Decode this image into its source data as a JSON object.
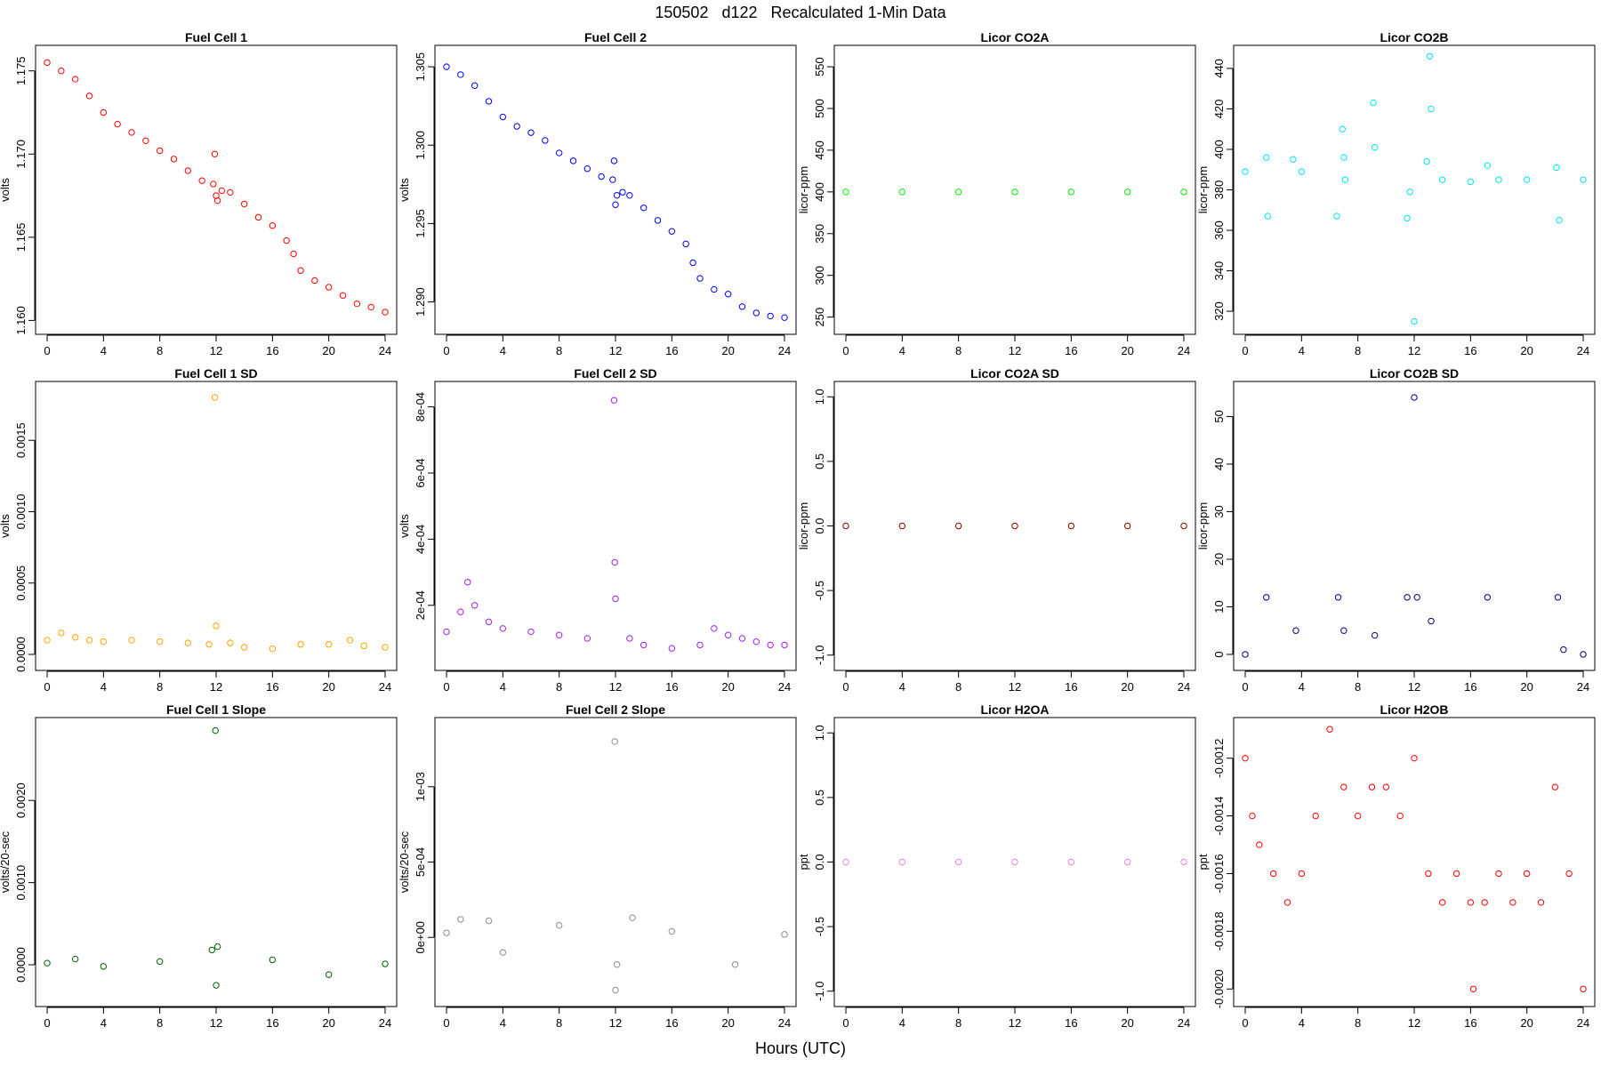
{
  "figure": {
    "title": "150502   d122   Recalculated 1-Min Data",
    "xlabel": "Hours (UTC)"
  },
  "chart_data": [
    {
      "type": "scatter",
      "title": "Fuel Cell 1",
      "ylabel": "volts",
      "color": "#ff0000",
      "xlim": [
        0,
        24
      ],
      "xticks": [
        0,
        4,
        8,
        12,
        16,
        20,
        24
      ],
      "ylim": [
        1.1597,
        1.176
      ],
      "yticks": [
        1.16,
        1.165,
        1.17,
        1.175
      ],
      "ytick_labels": [
        "1.160",
        "1.165",
        "1.170",
        "1.175"
      ],
      "x": [
        0,
        1,
        2,
        3,
        4,
        5,
        6,
        7,
        8,
        9,
        10,
        11,
        11.8,
        11.9,
        12.0,
        12.1,
        12.4,
        13,
        14,
        15,
        16,
        17,
        17.5,
        18,
        19,
        20,
        21,
        22,
        23,
        24
      ],
      "y": [
        1.1755,
        1.175,
        1.1745,
        1.1735,
        1.1725,
        1.1718,
        1.1713,
        1.1708,
        1.1702,
        1.1697,
        1.169,
        1.1684,
        1.1682,
        1.17,
        1.1675,
        1.1672,
        1.1678,
        1.1677,
        1.167,
        1.1662,
        1.1657,
        1.1648,
        1.164,
        1.163,
        1.1624,
        1.162,
        1.1615,
        1.161,
        1.1608,
        1.1605
      ]
    },
    {
      "type": "scatter",
      "title": "Fuel Cell 2",
      "ylabel": "volts",
      "color": "#0000ff",
      "xlim": [
        0,
        24
      ],
      "xticks": [
        0,
        4,
        8,
        12,
        16,
        20,
        24
      ],
      "ylim": [
        1.2885,
        1.3058
      ],
      "yticks": [
        1.29,
        1.295,
        1.3,
        1.305
      ],
      "ytick_labels": [
        "1.290",
        "1.295",
        "1.300",
        "1.305"
      ],
      "x": [
        0,
        1,
        2,
        3,
        4,
        5,
        6,
        7,
        8,
        9,
        10,
        11,
        11.8,
        11.9,
        12.0,
        12.1,
        12.5,
        13,
        14,
        15,
        16,
        17,
        17.5,
        18,
        19,
        20,
        21,
        22,
        23,
        24
      ],
      "y": [
        1.305,
        1.3045,
        1.3038,
        1.3028,
        1.3018,
        1.3012,
        1.3008,
        1.3003,
        1.2995,
        1.299,
        1.2985,
        1.298,
        1.2978,
        1.299,
        1.2962,
        1.2968,
        1.297,
        1.2968,
        1.296,
        1.2952,
        1.2945,
        1.2937,
        1.2925,
        1.2915,
        1.2908,
        1.2905,
        1.2897,
        1.2893,
        1.2891,
        1.289
      ]
    },
    {
      "type": "scatter",
      "title": "Licor CO2A",
      "ylabel": "licor-ppm",
      "color": "#00ee00",
      "xlim": [
        0,
        24
      ],
      "xticks": [
        0,
        4,
        8,
        12,
        16,
        20,
        24
      ],
      "ylim": [
        240,
        565
      ],
      "yticks": [
        250,
        300,
        350,
        400,
        450,
        500,
        550
      ],
      "ytick_labels": [
        "250",
        "300",
        "350",
        "400",
        "450",
        "500",
        "550"
      ],
      "x": [
        0,
        4,
        8,
        12,
        16,
        20,
        24
      ],
      "y": [
        400,
        400,
        400,
        400,
        400,
        400,
        400
      ]
    },
    {
      "type": "scatter",
      "title": "Licor CO2B",
      "ylabel": "licor-ppm",
      "color": "#00e5ee",
      "xlim": [
        0,
        24
      ],
      "xticks": [
        0,
        4,
        8,
        12,
        16,
        20,
        24
      ],
      "ylim": [
        313,
        447
      ],
      "yticks": [
        320,
        340,
        360,
        380,
        400,
        420,
        440
      ],
      "ytick_labels": [
        "320",
        "340",
        "360",
        "380",
        "400",
        "420",
        "440"
      ],
      "x": [
        0,
        1.5,
        1.6,
        3.4,
        4,
        6.5,
        6.9,
        7.0,
        7.1,
        9.1,
        9.2,
        11.5,
        11.7,
        12.0,
        12.9,
        13.1,
        13.2,
        14,
        16,
        17.2,
        18,
        20,
        22.1,
        22.3,
        24
      ],
      "y": [
        389,
        396,
        367,
        395,
        389,
        367,
        410,
        396,
        385,
        423,
        401,
        366,
        379,
        315,
        394,
        446,
        420,
        385,
        384,
        392,
        385,
        385,
        391,
        365,
        385
      ]
    },
    {
      "type": "scatter",
      "title": "Fuel Cell 1 SD",
      "ylabel": "volts",
      "color": "#ffa500",
      "xlim": [
        0,
        24
      ],
      "xticks": [
        0,
        4,
        8,
        12,
        16,
        20,
        24
      ],
      "ylim": [
        -5e-05,
        0.00185
      ],
      "yticks": [
        0.0,
        0.0005,
        0.001,
        0.0015
      ],
      "ytick_labels": [
        "0.0000",
        "0.0005",
        "0.0010",
        "0.0015"
      ],
      "x": [
        0,
        1,
        2,
        3,
        4,
        6,
        8,
        10,
        11.5,
        11.9,
        12.0,
        13,
        14,
        16,
        18,
        20,
        21.5,
        22.5,
        24
      ],
      "y": [
        0.0001,
        0.00015,
        0.00012,
        0.0001,
        9e-05,
        0.0001,
        9e-05,
        8e-05,
        7e-05,
        0.0018,
        0.0002,
        8e-05,
        5e-05,
        4e-05,
        7e-05,
        7e-05,
        0.0001,
        6e-05,
        5e-05
      ]
    },
    {
      "type": "scatter",
      "title": "Fuel Cell 2 SD",
      "ylabel": "volts",
      "color": "#a020f0",
      "xlim": [
        0,
        24
      ],
      "xticks": [
        0,
        4,
        8,
        12,
        16,
        20,
        24
      ],
      "ylim": [
        3e-05,
        0.00085
      ],
      "yticks": [
        0.0002,
        0.0004,
        0.0006,
        0.0008
      ],
      "ytick_labels": [
        "2e-04",
        "4e-04",
        "6e-04",
        "8e-04"
      ],
      "x": [
        0,
        1,
        1.5,
        2,
        3,
        4,
        6,
        8,
        10,
        11.9,
        11.95,
        12.0,
        13,
        14,
        16,
        18,
        19,
        20,
        21,
        22,
        23,
        24
      ],
      "y": [
        0.00012,
        0.00018,
        0.00027,
        0.0002,
        0.00015,
        0.00013,
        0.00012,
        0.00011,
        0.0001,
        0.00082,
        0.00033,
        0.00022,
        0.0001,
        8e-05,
        7e-05,
        8e-05,
        0.00013,
        0.00011,
        0.0001,
        9e-05,
        8e-05,
        8e-05
      ]
    },
    {
      "type": "scatter",
      "title": "Licor CO2A SD",
      "ylabel": "licor-ppm",
      "color": "#8b0000",
      "xlim": [
        0,
        24
      ],
      "xticks": [
        0,
        4,
        8,
        12,
        16,
        20,
        24
      ],
      "ylim": [
        -1.05,
        1.05
      ],
      "yticks": [
        -1.0,
        -0.5,
        0.0,
        0.5,
        1.0
      ],
      "ytick_labels": [
        "-1.0",
        "-0.5",
        "0.0",
        "0.5",
        "1.0"
      ],
      "x": [
        0,
        4,
        8,
        12,
        16,
        20,
        24
      ],
      "y": [
        0,
        0,
        0,
        0,
        0,
        0,
        0
      ]
    },
    {
      "type": "scatter",
      "title": "Licor CO2B SD",
      "ylabel": "licor-ppm",
      "color": "#000080",
      "xlim": [
        0,
        24
      ],
      "xticks": [
        0,
        4,
        8,
        12,
        16,
        20,
        24
      ],
      "ylim": [
        -1.5,
        55.5
      ],
      "yticks": [
        0,
        10,
        20,
        30,
        40,
        50
      ],
      "ytick_labels": [
        "0",
        "10",
        "20",
        "30",
        "40",
        "50"
      ],
      "x": [
        0,
        1.5,
        3.6,
        6.6,
        7.0,
        9.2,
        11.5,
        12.0,
        12.2,
        13.2,
        17.2,
        22.2,
        22.6,
        24
      ],
      "y": [
        0,
        12,
        5,
        12,
        5,
        4,
        12,
        54,
        12,
        7,
        12,
        12,
        1,
        0
      ]
    },
    {
      "type": "scatter",
      "title": "Fuel Cell 1 Slope",
      "ylabel": "volts/20-sec",
      "color": "#006400",
      "xlim": [
        0,
        24
      ],
      "xticks": [
        0,
        4,
        8,
        12,
        16,
        20,
        24
      ],
      "ylim": [
        -0.0004,
        0.0029
      ],
      "yticks": [
        0.0,
        0.001,
        0.002
      ],
      "ytick_labels": [
        "0.0000",
        "0.0010",
        "0.0020"
      ],
      "x": [
        0,
        2,
        4,
        8,
        11.7,
        11.95,
        12.0,
        12.1,
        16,
        20,
        24
      ],
      "y": [
        2e-05,
        7e-05,
        -2e-05,
        4e-05,
        0.00018,
        0.00285,
        -0.00025,
        0.00022,
        6e-05,
        -0.00012,
        1e-05
      ]
    },
    {
      "type": "scatter",
      "title": "Fuel Cell 2 Slope",
      "ylabel": "volts/20-sec",
      "color": "#8c8c8c",
      "xlim": [
        0,
        24
      ],
      "xticks": [
        0,
        4,
        8,
        12,
        16,
        20,
        24
      ],
      "ylim": [
        -0.0004,
        0.0014
      ],
      "yticks": [
        0,
        0.0005,
        0.001
      ],
      "ytick_labels": [
        "0e+00",
        "5e-04",
        "1e-03"
      ],
      "x": [
        0,
        1,
        3,
        4,
        8,
        11.95,
        12.0,
        12.1,
        13.2,
        16,
        20.5,
        24
      ],
      "y": [
        3e-05,
        0.00012,
        0.00011,
        -0.0001,
        8e-05,
        0.0013,
        -0.00035,
        -0.00018,
        0.00013,
        4e-05,
        -0.00018,
        2e-05
      ]
    },
    {
      "type": "scatter",
      "title": "Licor H2OA",
      "ylabel": "ppt",
      "color": "#ee82ee",
      "xlim": [
        0,
        24
      ],
      "xticks": [
        0,
        4,
        8,
        12,
        16,
        20,
        24
      ],
      "ylim": [
        -1.05,
        1.05
      ],
      "yticks": [
        -1.0,
        -0.5,
        0.0,
        0.5,
        1.0
      ],
      "ytick_labels": [
        "-1.0",
        "-0.5",
        "0.0",
        "0.5",
        "1.0"
      ],
      "x": [
        0,
        4,
        8,
        12,
        16,
        20,
        24
      ],
      "y": [
        0,
        0,
        0,
        0,
        0,
        0,
        0
      ]
    },
    {
      "type": "scatter",
      "title": "Licor H2OB",
      "ylabel": "ppt",
      "color": "#ff0000",
      "xlim": [
        0,
        24
      ],
      "xticks": [
        0,
        4,
        8,
        12,
        16,
        20,
        24
      ],
      "ylim": [
        -0.00203,
        -0.00109
      ],
      "yticks": [
        -0.002,
        -0.0018,
        -0.0016,
        -0.0014,
        -0.0012
      ],
      "ytick_labels": [
        "-0.0020",
        "-0.0018",
        "-0.0016",
        "-0.0014",
        "-0.0012"
      ],
      "x": [
        0,
        0.5,
        1,
        2,
        3,
        4,
        5,
        6,
        7,
        8,
        9,
        10,
        11,
        12,
        13,
        14,
        15,
        16,
        16.2,
        17,
        18,
        19,
        20,
        21,
        22,
        23,
        24
      ],
      "y": [
        -0.0012,
        -0.0014,
        -0.0015,
        -0.0016,
        -0.0017,
        -0.0016,
        -0.0014,
        -0.0011,
        -0.0013,
        -0.0014,
        -0.0013,
        -0.0013,
        -0.0014,
        -0.0012,
        -0.0016,
        -0.0017,
        -0.0016,
        -0.0017,
        -0.002,
        -0.0017,
        -0.0016,
        -0.0017,
        -0.0016,
        -0.0017,
        -0.0013,
        -0.0016,
        -0.002
      ]
    }
  ]
}
